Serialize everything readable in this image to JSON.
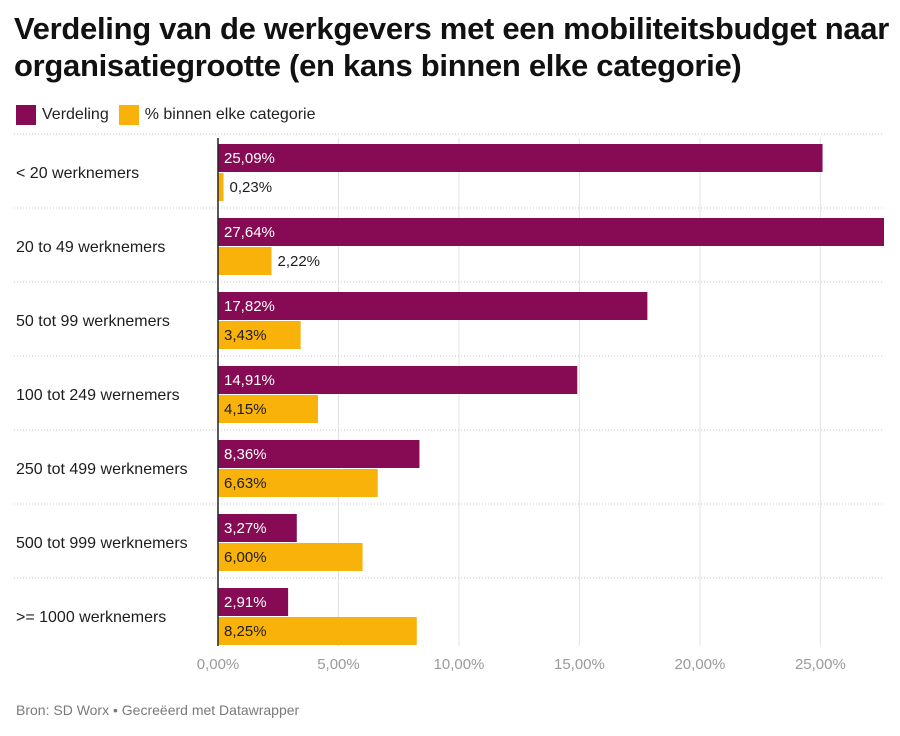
{
  "header": {
    "title": "Verdeling van de werkgevers met een mobiliteitsbudget naar organisatiegrootte (en kans binnen elke categorie)"
  },
  "footer": {
    "source": "Bron: SD Worx • Gecreëerd met Datawrapper"
  },
  "chart_data": {
    "type": "bar",
    "orientation": "horizontal",
    "categories": [
      "< 20 werknemers",
      "20 to 49 werknemers",
      "50 tot 99 werknemers",
      "100 tot 249 wernemers",
      "250 tot 499 werknemers",
      "500 tot 999 werknemers",
      ">= 1000 werknemers"
    ],
    "series": [
      {
        "name": "Verdeling",
        "color": "#870b54",
        "values": [
          25.09,
          27.64,
          17.82,
          14.91,
          8.36,
          3.27,
          2.91
        ],
        "labels": [
          "25,09%",
          "27,64%",
          "17,82%",
          "14,91%",
          "8,36%",
          "3,27%",
          "2,91%"
        ]
      },
      {
        "name": "% binnen elke categorie",
        "color": "#f8b20a",
        "values": [
          0.23,
          2.22,
          3.43,
          4.15,
          6.63,
          6.0,
          8.25
        ],
        "labels": [
          "0,23%",
          "2,22%",
          "3,43%",
          "4,15%",
          "6,63%",
          "6,00%",
          "8,25%"
        ]
      }
    ],
    "x_ticks": [
      0,
      5,
      10,
      15,
      20,
      25
    ],
    "x_tick_labels": [
      "0,00%",
      "5,00%",
      "10,00%",
      "15,00%",
      "20,00%",
      "25,00%"
    ],
    "xlim": [
      0,
      27.64
    ],
    "grid": true,
    "legend_position": "top-left"
  }
}
